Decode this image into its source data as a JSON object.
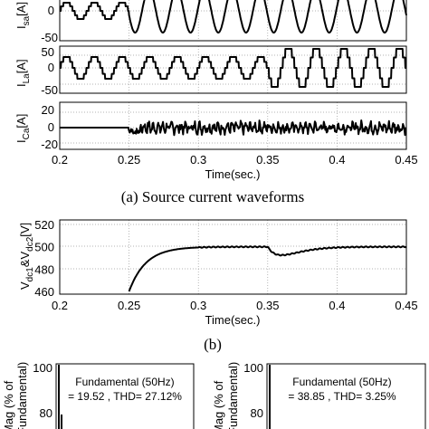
{
  "chart_data": [
    {
      "id": "source-current",
      "type": "line",
      "ylabel_main": "I",
      "ylabel_sub": "sa",
      "ylabel_unit": "[A]",
      "xlim": [
        0.2,
        0.45
      ],
      "yticks": [
        "0",
        "-50"
      ],
      "description_fund": 50,
      "series": [
        {
          "x_start": 0.2,
          "x_end": 0.45,
          "amp_before": 28,
          "amp_after": 45,
          "switch": 0.25
        }
      ]
    },
    {
      "id": "load-current",
      "type": "line",
      "ylabel_main": "I",
      "ylabel_sub": "La",
      "ylabel_unit": "[A]",
      "xlim": [
        0.2,
        0.45
      ],
      "yticks": [
        "50",
        "0",
        "-50"
      ],
      "series": [
        {
          "x_start": 0.2,
          "x_end": 0.45,
          "amp_before": 28,
          "amp_after": 45,
          "switch": 0.35
        }
      ]
    },
    {
      "id": "compensating-current",
      "type": "line",
      "ylabel_main": "I",
      "ylabel_sub": "Ca",
      "ylabel_unit": "[A]",
      "xlim": [
        0.2,
        0.45
      ],
      "yticks": [
        "20",
        "0",
        "-20"
      ],
      "xticks": [
        "0.2",
        "0.25",
        "0.3",
        "0.35",
        "0.4",
        "0.45"
      ],
      "xlabel": "Time(sec.)",
      "series": [
        {
          "x_start": 0.2,
          "x_end": 0.45,
          "switch": 0.25
        }
      ]
    },
    {
      "id": "dc-voltage",
      "type": "line",
      "ylabel_parts": [
        "V",
        "dc1",
        "&V",
        "dc2",
        "[V]"
      ],
      "xlim": [
        0.2,
        0.45
      ],
      "ylim": [
        460,
        520
      ],
      "yticks": [
        "520",
        "500",
        "480",
        "460"
      ],
      "xticks": [
        "0.2",
        "0.25",
        "0.3",
        "0.35",
        "0.4",
        "0.45"
      ],
      "xlabel": "Time(sec.)",
      "series": [
        {
          "start": 0.25,
          "settle": 500,
          "dip_time": 0.36,
          "dip_value": 493
        }
      ]
    },
    {
      "id": "spectrum-left",
      "type": "bar",
      "ylabel_line1": "Mag (% of",
      "ylabel_line2": "Fundamental)",
      "yticks": [
        "100",
        "80"
      ],
      "annotation_line1": "Fundamental (50Hz)",
      "annotation_line2": "= 19.52 , THD= 27.12%"
    },
    {
      "id": "spectrum-right",
      "type": "bar",
      "ylabel_line1": "Mag (% of",
      "ylabel_line2": "Fundamental)",
      "yticks": [
        "100",
        "80"
      ],
      "annotation_line1": "Fundamental (50Hz)",
      "annotation_line2": "= 38.85 , THD= 3.25%"
    }
  ],
  "captions": {
    "a": "(a) Source current waveforms",
    "b": "(b)"
  }
}
